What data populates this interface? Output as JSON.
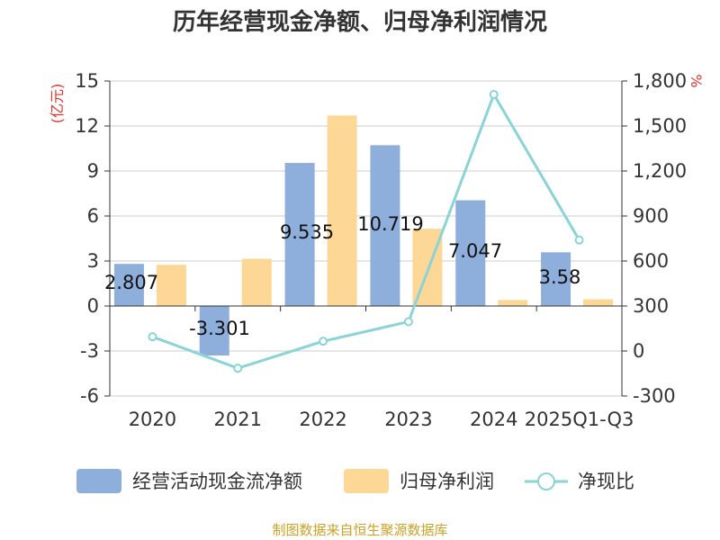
{
  "chart_data": {
    "type": "bar",
    "title": "历年经营现金净额、归母净利润情况",
    "categories": [
      "2020",
      "2021",
      "2022",
      "2023",
      "2024",
      "2025Q1-Q3"
    ],
    "left_axis": {
      "unit": "(亿元)",
      "min": -6,
      "max": 15,
      "ticks": [
        "15",
        "12",
        "9",
        "6",
        "3",
        "0",
        "-3",
        "-6"
      ]
    },
    "right_axis": {
      "unit": "%",
      "min": -300,
      "max": 1800,
      "ticks": [
        "1,800",
        "1,500",
        "1,200",
        "900",
        "600",
        "300",
        "0",
        "-300"
      ]
    },
    "series": [
      {
        "name": "经营活动现金流净额",
        "type": "bar",
        "axis": "left",
        "color": "#8eaedb",
        "values": [
          2.807,
          -3.301,
          9.535,
          10.719,
          7.047,
          3.58
        ],
        "labels": [
          "2.807",
          "-3.301",
          "9.535",
          "10.719",
          "7.047",
          "3.58"
        ]
      },
      {
        "name": "归母净利润",
        "type": "bar",
        "axis": "left",
        "color": "#fdd796",
        "values": [
          2.75,
          3.15,
          12.7,
          5.15,
          0.4,
          0.45
        ]
      },
      {
        "name": "净现比",
        "type": "line",
        "axis": "right",
        "color": "#8ad3d7",
        "values": [
          95,
          -115,
          65,
          195,
          1710,
          740
        ]
      }
    ],
    "legend_position": "bottom",
    "source": "制图数据来自恒生聚源数据库"
  }
}
